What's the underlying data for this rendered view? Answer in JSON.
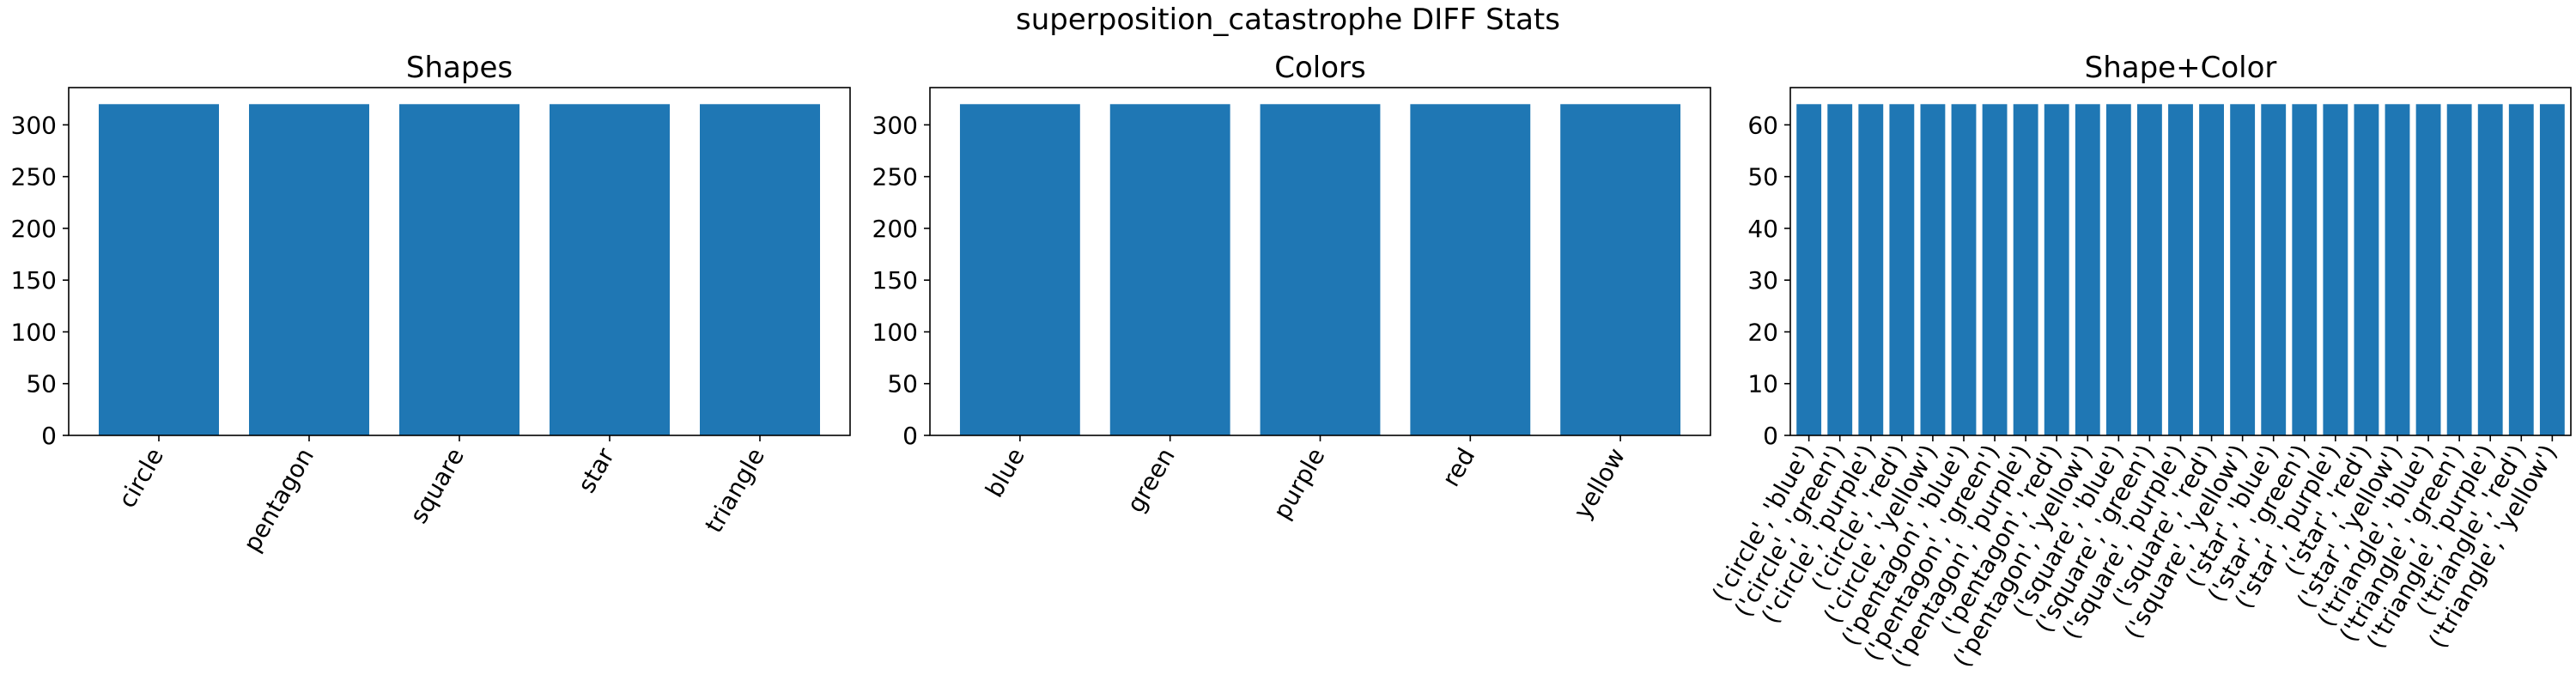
{
  "figure": {
    "suptitle": "superposition_catastrophe DIFF Stats"
  },
  "chart_data": [
    {
      "type": "bar",
      "title": "Shapes",
      "xlabel": "",
      "ylabel": "",
      "categories": [
        "circle",
        "pentagon",
        "square",
        "star",
        "triangle"
      ],
      "values": [
        320,
        320,
        320,
        320,
        320
      ],
      "ylim": [
        0,
        336
      ],
      "yticks": [
        0,
        50,
        100,
        150,
        200,
        250,
        300
      ],
      "bar_color": "#1f77b4",
      "grid": false
    },
    {
      "type": "bar",
      "title": "Colors",
      "xlabel": "",
      "ylabel": "",
      "categories": [
        "blue",
        "green",
        "purple",
        "red",
        "yellow"
      ],
      "values": [
        320,
        320,
        320,
        320,
        320
      ],
      "ylim": [
        0,
        336
      ],
      "yticks": [
        0,
        50,
        100,
        150,
        200,
        250,
        300
      ],
      "bar_color": "#1f77b4",
      "grid": false
    },
    {
      "type": "bar",
      "title": "Shape+Color",
      "xlabel": "",
      "ylabel": "",
      "categories": [
        "('circle', 'blue')",
        "('circle', 'green')",
        "('circle', 'purple')",
        "('circle', 'red')",
        "('circle', 'yellow')",
        "('pentagon', 'blue')",
        "('pentagon', 'green')",
        "('pentagon', 'purple')",
        "('pentagon', 'red')",
        "('pentagon', 'yellow')",
        "('square', 'blue')",
        "('square', 'green')",
        "('square', 'purple')",
        "('square', 'red')",
        "('square', 'yellow')",
        "('star', 'blue')",
        "('star', 'green')",
        "('star', 'purple')",
        "('star', 'red')",
        "('star', 'yellow')",
        "('triangle', 'blue')",
        "('triangle', 'green')",
        "('triangle', 'purple')",
        "('triangle', 'red')",
        "('triangle', 'yellow')"
      ],
      "values": [
        64,
        64,
        64,
        64,
        64,
        64,
        64,
        64,
        64,
        64,
        64,
        64,
        64,
        64,
        64,
        64,
        64,
        64,
        64,
        64,
        64,
        64,
        64,
        64,
        64
      ],
      "ylim": [
        0,
        67.2
      ],
      "yticks": [
        0,
        10,
        20,
        30,
        40,
        50,
        60
      ],
      "bar_color": "#1f77b4",
      "grid": false
    }
  ]
}
